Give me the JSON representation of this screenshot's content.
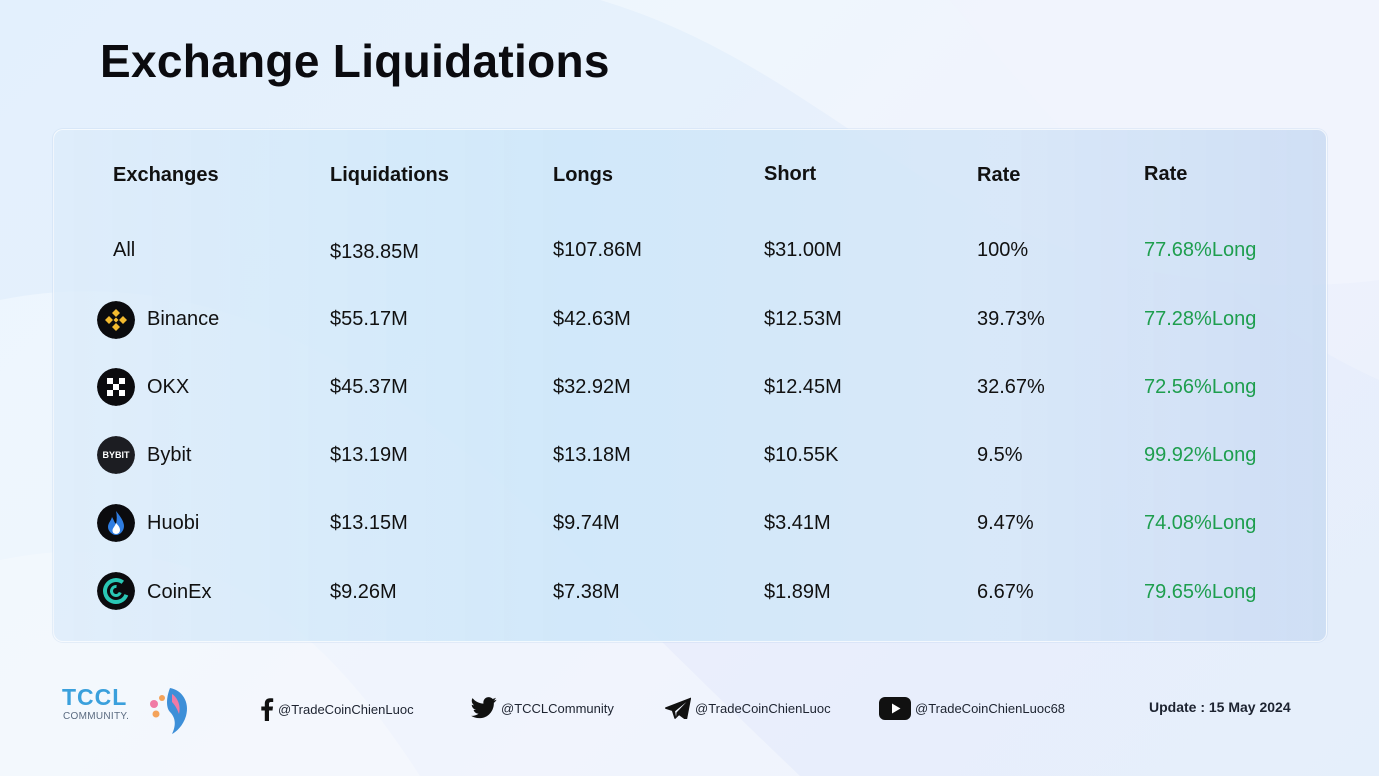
{
  "title": "Exchange Liquidations",
  "table": {
    "headers": [
      "Exchanges",
      "Liquidations",
      "Longs",
      "Short",
      "Rate",
      "Rate"
    ],
    "rows": [
      {
        "name": "All",
        "liquidations": "$138.85M",
        "longs": "$107.86M",
        "short": "$31.00M",
        "rate": "100%",
        "long_rate": "77.68%Long"
      },
      {
        "name": "Binance",
        "logo": "binance-logo",
        "liquidations": "$55.17M",
        "longs": "$42.63M",
        "short": "$12.53M",
        "rate": "39.73%",
        "long_rate": "77.28%Long"
      },
      {
        "name": "OKX",
        "logo": "okx-logo",
        "liquidations": "$45.37M",
        "longs": "$32.92M",
        "short": "$12.45M",
        "rate": "32.67%",
        "long_rate": "72.56%Long"
      },
      {
        "name": "Bybit",
        "logo": "bybit-logo",
        "logo_text": "BYBIT",
        "liquidations": "$13.19M",
        "longs": "$13.18M",
        "short": "$10.55K",
        "rate": "9.5%",
        "long_rate": "99.92%Long"
      },
      {
        "name": "Huobi",
        "logo": "huobi-logo",
        "liquidations": "$13.15M",
        "longs": "$9.74M",
        "short": "$3.41M",
        "rate": "9.47%",
        "long_rate": "74.08%Long"
      },
      {
        "name": "CoinEx",
        "logo": "coinex-logo",
        "liquidations": "$9.26M",
        "longs": "$7.38M",
        "short": "$1.89M",
        "rate": "6.67%",
        "long_rate": "79.65%Long"
      }
    ]
  },
  "colors": {
    "long_rate": "#1e9e4e",
    "binance": "#f3ba2f",
    "huobi": "#2f7de1",
    "coinex": "#2ac7b5"
  },
  "footer": {
    "brand": "TCCL",
    "brand_sub": "COMMUNITY.",
    "facebook": "@TradeCoinChienLuoc",
    "twitter": "@TCCLCommunity",
    "telegram": "@TradeCoinChienLuoc",
    "youtube": "@TradeCoinChienLuoc68",
    "update": "Update : 15 May 2024"
  },
  "icons": [
    "facebook-icon",
    "twitter-icon",
    "telegram-icon",
    "youtube-icon",
    "tccl-logo"
  ]
}
